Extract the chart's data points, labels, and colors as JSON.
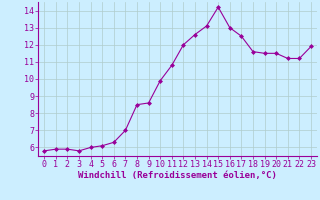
{
  "x": [
    0,
    1,
    2,
    3,
    4,
    5,
    6,
    7,
    8,
    9,
    10,
    11,
    12,
    13,
    14,
    15,
    16,
    17,
    18,
    19,
    20,
    21,
    22,
    23
  ],
  "y": [
    5.8,
    5.9,
    5.9,
    5.8,
    6.0,
    6.1,
    6.3,
    7.0,
    8.5,
    8.6,
    9.9,
    10.8,
    12.0,
    12.6,
    13.1,
    14.2,
    13.0,
    12.5,
    11.6,
    11.5,
    11.5,
    11.2,
    11.2,
    11.9
  ],
  "line_color": "#990099",
  "marker": "D",
  "marker_size": 2,
  "bg_color": "#cceeff",
  "grid_color": "#aaddcc",
  "xlabel": "Windchill (Refroidissement éolien,°C)",
  "xlabel_color": "#990099",
  "xlabel_fontsize": 6.5,
  "tick_label_color": "#990099",
  "tick_fontsize": 6,
  "ylim": [
    5.5,
    14.5
  ],
  "yticks": [
    6,
    7,
    8,
    9,
    10,
    11,
    12,
    13,
    14
  ],
  "xlim": [
    -0.5,
    23.5
  ],
  "xtick_labels": [
    "0",
    "1",
    "2",
    "3",
    "4",
    "5",
    "6",
    "7",
    "8",
    "9",
    "10",
    "11",
    "12",
    "13",
    "14",
    "15",
    "16",
    "17",
    "18",
    "19",
    "20",
    "21",
    "22",
    "23"
  ]
}
